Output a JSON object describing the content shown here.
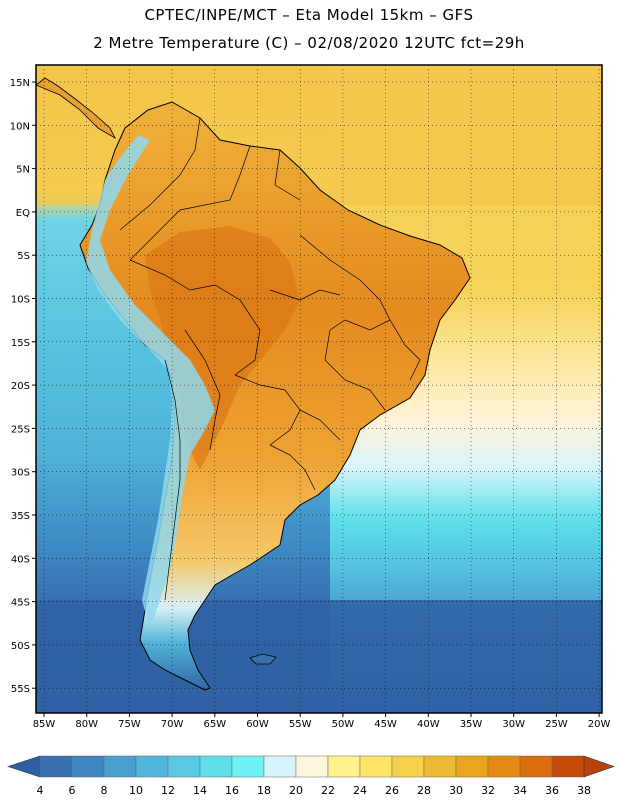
{
  "header": {
    "line1": "CPTEC/INPE/MCT –  Eta Model 15km – GFS",
    "line2": "2 Metre Temperature (C) – 02/08/2020 12UTC fct=29h"
  },
  "map": {
    "lat_labels": [
      "15N",
      "10N",
      "5N",
      "EQ",
      "5S",
      "10S",
      "15S",
      "20S",
      "25S",
      "30S",
      "35S",
      "40S",
      "45S",
      "50S",
      "55S"
    ],
    "lon_labels": [
      "85W",
      "80W",
      "75W",
      "70W",
      "65W",
      "60W",
      "55W",
      "50W",
      "45W",
      "40W",
      "35W",
      "30W",
      "25W",
      "20W"
    ]
  },
  "colorbar": {
    "labels": [
      "4",
      "6",
      "8",
      "10",
      "12",
      "14",
      "16",
      "18",
      "20",
      "22",
      "24",
      "26",
      "28",
      "30",
      "32",
      "34",
      "36",
      "38"
    ],
    "colors": [
      "#3a6fb0",
      "#3f86c0",
      "#48a0cf",
      "#52b6dc",
      "#58cbe3",
      "#5fdfea",
      "#6ef2f5",
      "#d8f5fb",
      "#fff6de",
      "#fff28c",
      "#ffe566",
      "#f5d04a",
      "#eeba36",
      "#eaa41e",
      "#e48a14",
      "#dc6e0c",
      "#c84a08"
    ],
    "low_color": "#2e5fa0",
    "high_color": "#b8420a"
  },
  "legend": {
    "ocean_cold": "#2e5fa0",
    "ocean_mid": "#52b6dc",
    "ocean_warm": "#f5d04a",
    "land_hot": "#dc8a24",
    "andes_cold": "#8fd8ee"
  }
}
